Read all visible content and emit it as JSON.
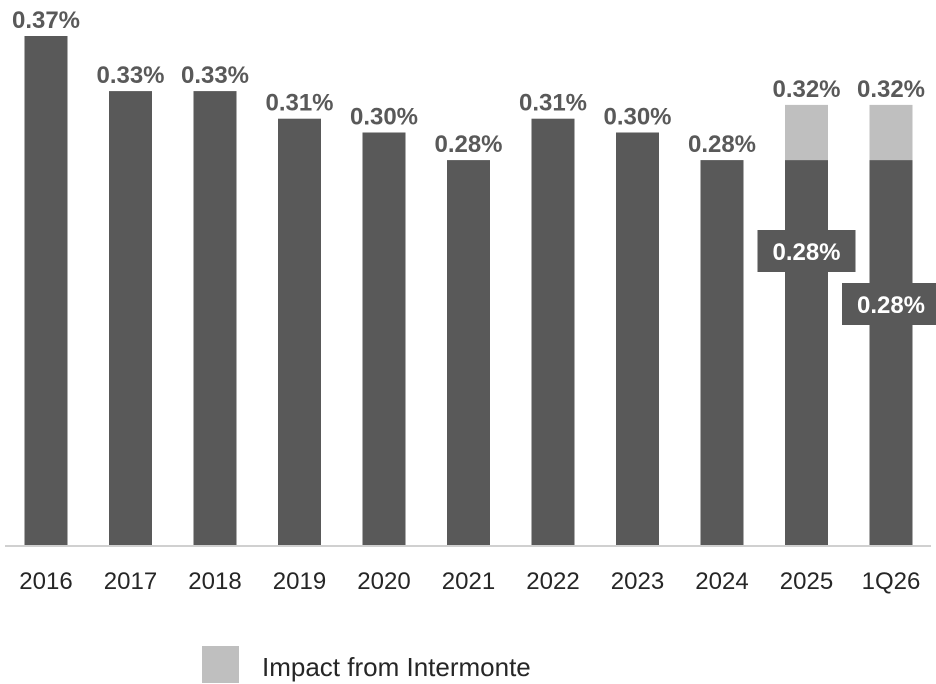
{
  "chart_data": {
    "type": "bar",
    "stacked": true,
    "categories": [
      "2016",
      "2017",
      "2018",
      "2019",
      "2020",
      "2021",
      "2022",
      "2023",
      "2024",
      "2025",
      "1Q26"
    ],
    "series": [
      {
        "values": [
          0.37,
          0.33,
          0.33,
          0.31,
          0.3,
          0.28,
          0.31,
          0.3,
          0.28,
          0.28,
          0.28
        ],
        "color": "#595959"
      },
      {
        "name": "Impact from Intermonte",
        "values": [
          0,
          0,
          0,
          0,
          0,
          0,
          0,
          0,
          0,
          0.04,
          0.04
        ],
        "color": "#bfbfbf"
      }
    ],
    "total_labels": [
      "0.37%",
      "0.33%",
      "0.33%",
      "0.31%",
      "0.30%",
      "0.28%",
      "0.31%",
      "0.30%",
      "0.28%",
      "0.32%",
      "0.32%"
    ],
    "base_labels": [
      "",
      "",
      "",
      "",
      "",
      "",
      "",
      "",
      "",
      "0.28%",
      "0.28%"
    ],
    "ylim": [
      0,
      0.37
    ],
    "grid": false,
    "legend_position": "bottom-center"
  }
}
